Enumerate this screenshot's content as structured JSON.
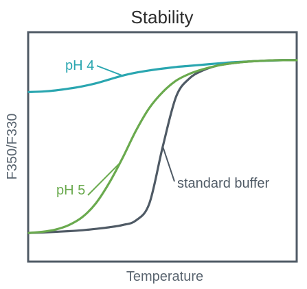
{
  "chart_data": {
    "type": "line",
    "title": "Stability",
    "xlabel": "Temperature",
    "ylabel": "F350/F330",
    "xlim": [
      0,
      1
    ],
    "ylim": [
      0,
      1
    ],
    "grid": false,
    "legend": "none (series labeled inline)",
    "series": [
      {
        "name": "pH 4",
        "color": "#2aa6b0",
        "x": [
          0.0,
          0.05,
          0.1,
          0.15,
          0.2,
          0.25,
          0.3,
          0.35,
          0.4,
          0.45,
          0.5,
          0.55,
          0.6,
          0.65,
          0.7,
          0.75,
          0.8,
          0.85,
          0.9,
          0.95,
          1.0
        ],
        "y": [
          0.74,
          0.742,
          0.747,
          0.755,
          0.765,
          0.778,
          0.795,
          0.812,
          0.825,
          0.835,
          0.843,
          0.85,
          0.855,
          0.86,
          0.865,
          0.87,
          0.873,
          0.876,
          0.878,
          0.88,
          0.88
        ]
      },
      {
        "name": "pH 5",
        "color": "#6aaa4e",
        "x": [
          0.0,
          0.05,
          0.1,
          0.15,
          0.2,
          0.25,
          0.3,
          0.35,
          0.4,
          0.45,
          0.5,
          0.55,
          0.6,
          0.65,
          0.7,
          0.75,
          0.8,
          0.85,
          0.9,
          0.95,
          1.0
        ],
        "y": [
          0.12,
          0.125,
          0.135,
          0.155,
          0.19,
          0.25,
          0.34,
          0.45,
          0.57,
          0.67,
          0.74,
          0.79,
          0.82,
          0.84,
          0.855,
          0.865,
          0.872,
          0.876,
          0.879,
          0.88,
          0.88
        ]
      },
      {
        "name": "standard buffer",
        "color": "#4f5a65",
        "x": [
          0.0,
          0.05,
          0.1,
          0.15,
          0.2,
          0.25,
          0.3,
          0.35,
          0.4,
          0.45,
          0.5,
          0.55,
          0.6,
          0.65,
          0.7,
          0.75,
          0.8,
          0.85,
          0.9,
          0.95,
          1.0
        ],
        "y": [
          0.12,
          0.122,
          0.125,
          0.128,
          0.132,
          0.138,
          0.145,
          0.155,
          0.175,
          0.25,
          0.5,
          0.72,
          0.8,
          0.835,
          0.855,
          0.865,
          0.872,
          0.876,
          0.879,
          0.88,
          0.88
        ]
      }
    ],
    "annotations": [
      {
        "text": "pH 4",
        "series": "pH 4",
        "points_to_x": 0.35
      },
      {
        "text": "pH 5",
        "series": "pH 5",
        "points_to_x": 0.34
      },
      {
        "text": "standard buffer",
        "series": "standard buffer",
        "points_to_x": 0.5
      }
    ]
  }
}
